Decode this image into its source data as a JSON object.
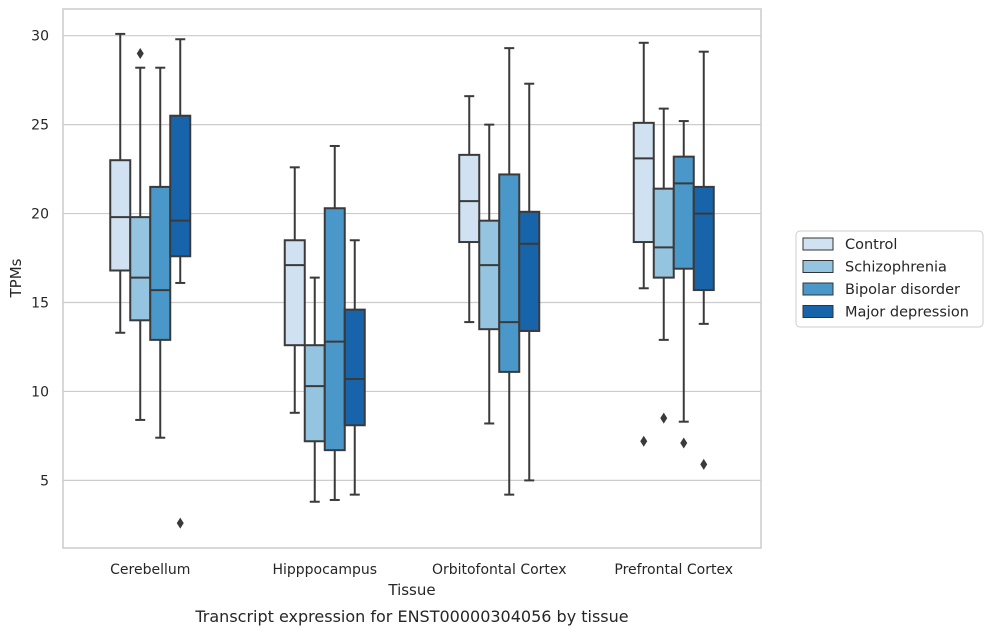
{
  "caption": "Transcript expression for ENST00000304056 by tissue",
  "colors": {
    "Control": "#d0e1f2",
    "Schizophrenia": "#94c4df",
    "Bipolar disorder": "#4a98c9",
    "Major depression": "#1764ab",
    "edge": "#3a3a3a",
    "grid": "#cccccc"
  },
  "chart_data": {
    "type": "box",
    "xlabel": "Tissue",
    "ylabel": "TPMs",
    "ylim": [
      1.2,
      31.5
    ],
    "yticks": [
      5,
      10,
      15,
      20,
      25,
      30
    ],
    "grid": "horizontal",
    "legend_position": "right",
    "categories": [
      "Cerebellum",
      "Hipppocampus",
      "Orbitofontal Cortex",
      "Prefrontal Cortex"
    ],
    "series": [
      {
        "name": "Control",
        "boxes": [
          {
            "whislo": 13.3,
            "q1": 16.8,
            "med": 19.8,
            "q3": 23.0,
            "whishi": 30.1,
            "fliers": []
          },
          {
            "whislo": 8.8,
            "q1": 12.6,
            "med": 17.1,
            "q3": 18.5,
            "whishi": 22.6,
            "fliers": []
          },
          {
            "whislo": 13.9,
            "q1": 18.4,
            "med": 20.7,
            "q3": 23.3,
            "whishi": 26.6,
            "fliers": []
          },
          {
            "whislo": 15.8,
            "q1": 18.4,
            "med": 23.1,
            "q3": 25.1,
            "whishi": 29.6,
            "fliers": [
              7.2
            ]
          }
        ]
      },
      {
        "name": "Schizophrenia",
        "boxes": [
          {
            "whislo": 8.4,
            "q1": 14.0,
            "med": 16.4,
            "q3": 19.8,
            "whishi": 28.2,
            "fliers": [
              29.0
            ]
          },
          {
            "whislo": 3.8,
            "q1": 7.2,
            "med": 10.3,
            "q3": 12.6,
            "whishi": 16.4,
            "fliers": []
          },
          {
            "whislo": 8.2,
            "q1": 13.5,
            "med": 17.1,
            "q3": 19.6,
            "whishi": 25.0,
            "fliers": []
          },
          {
            "whislo": 12.9,
            "q1": 16.4,
            "med": 18.1,
            "q3": 21.4,
            "whishi": 25.9,
            "fliers": [
              8.5
            ]
          }
        ]
      },
      {
        "name": "Bipolar disorder",
        "boxes": [
          {
            "whislo": 7.4,
            "q1": 12.9,
            "med": 15.7,
            "q3": 21.5,
            "whishi": 28.2,
            "fliers": []
          },
          {
            "whislo": 3.9,
            "q1": 6.7,
            "med": 12.8,
            "q3": 20.3,
            "whishi": 23.8,
            "fliers": []
          },
          {
            "whislo": 4.2,
            "q1": 11.1,
            "med": 13.9,
            "q3": 22.2,
            "whishi": 29.3,
            "fliers": []
          },
          {
            "whislo": 8.3,
            "q1": 16.9,
            "med": 21.7,
            "q3": 23.2,
            "whishi": 25.2,
            "fliers": [
              7.1
            ]
          }
        ]
      },
      {
        "name": "Major depression",
        "boxes": [
          {
            "whislo": 16.1,
            "q1": 17.6,
            "med": 19.6,
            "q3": 25.5,
            "whishi": 29.8,
            "fliers": [
              2.6
            ]
          },
          {
            "whislo": 4.2,
            "q1": 8.1,
            "med": 10.7,
            "q3": 14.6,
            "whishi": 18.5,
            "fliers": []
          },
          {
            "whislo": 5.0,
            "q1": 13.4,
            "med": 18.3,
            "q3": 20.1,
            "whishi": 27.3,
            "fliers": []
          },
          {
            "whislo": 13.8,
            "q1": 15.7,
            "med": 20.0,
            "q3": 21.5,
            "whishi": 29.1,
            "fliers": [
              5.9
            ]
          }
        ]
      }
    ]
  }
}
